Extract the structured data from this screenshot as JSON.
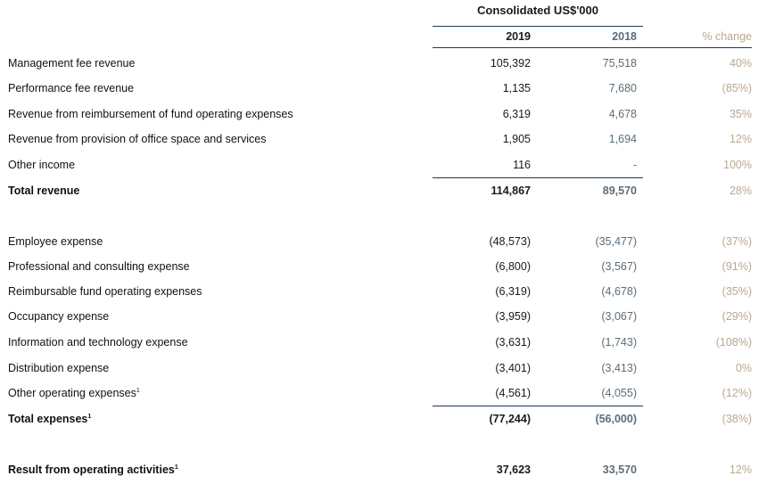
{
  "header": {
    "group_title": "Consolidated US$'000",
    "col_2019": "2019",
    "col_2018": "2018",
    "col_change": "% change"
  },
  "revenue": {
    "rows": [
      {
        "label": "Management fee revenue",
        "v2019": "105,392",
        "v2018": "75,518",
        "change": "40%"
      },
      {
        "label": "Performance fee revenue",
        "v2019": "1,135",
        "v2018": "7,680",
        "change": "(85%)"
      },
      {
        "label": "Revenue from reimbursement of fund operating expenses",
        "v2019": "6,319",
        "v2018": "4,678",
        "change": "35%"
      },
      {
        "label": "Revenue from provision of office space and services",
        "v2019": "1,905",
        "v2018": "1,694",
        "change": "12%"
      },
      {
        "label": "Other income",
        "v2019": "116",
        "v2018": "-",
        "change": "100%"
      }
    ],
    "total": {
      "label": "Total revenue",
      "v2019": "114,867",
      "v2018": "89,570",
      "change": "28%"
    }
  },
  "expenses": {
    "rows": [
      {
        "label": "Employee expense",
        "v2019": "(48,573)",
        "v2018": "(35,477)",
        "change": "(37%)"
      },
      {
        "label": "Professional and consulting expense",
        "v2019": "(6,800)",
        "v2018": "(3,567)",
        "change": "(91%)"
      },
      {
        "label": "Reimbursable fund operating expenses",
        "v2019": "(6,319)",
        "v2018": "(4,678)",
        "change": "(35%)"
      },
      {
        "label": "Occupancy expense",
        "v2019": "(3,959)",
        "v2018": "(3,067)",
        "change": "(29%)"
      },
      {
        "label": "Information and technology expense",
        "v2019": "(3,631)",
        "v2018": "(1,743)",
        "change": "(108%)"
      },
      {
        "label": "Distribution expense",
        "v2019": "(3,401)",
        "v2018": "(3,413)",
        "change": "0%"
      },
      {
        "label": "Other operating expenses",
        "footnote": "1",
        "v2019": "(4,561)",
        "v2018": "(4,055)",
        "change": "(12%)"
      }
    ],
    "total": {
      "label": "Total expenses",
      "footnote": "1",
      "v2019": "(77,244)",
      "v2018": "(56,000)",
      "change": "(38%)"
    }
  },
  "result": {
    "label": "Result from operating activities",
    "footnote": "1",
    "v2019": "37,623",
    "v2018": "33,570",
    "change": "12%"
  }
}
